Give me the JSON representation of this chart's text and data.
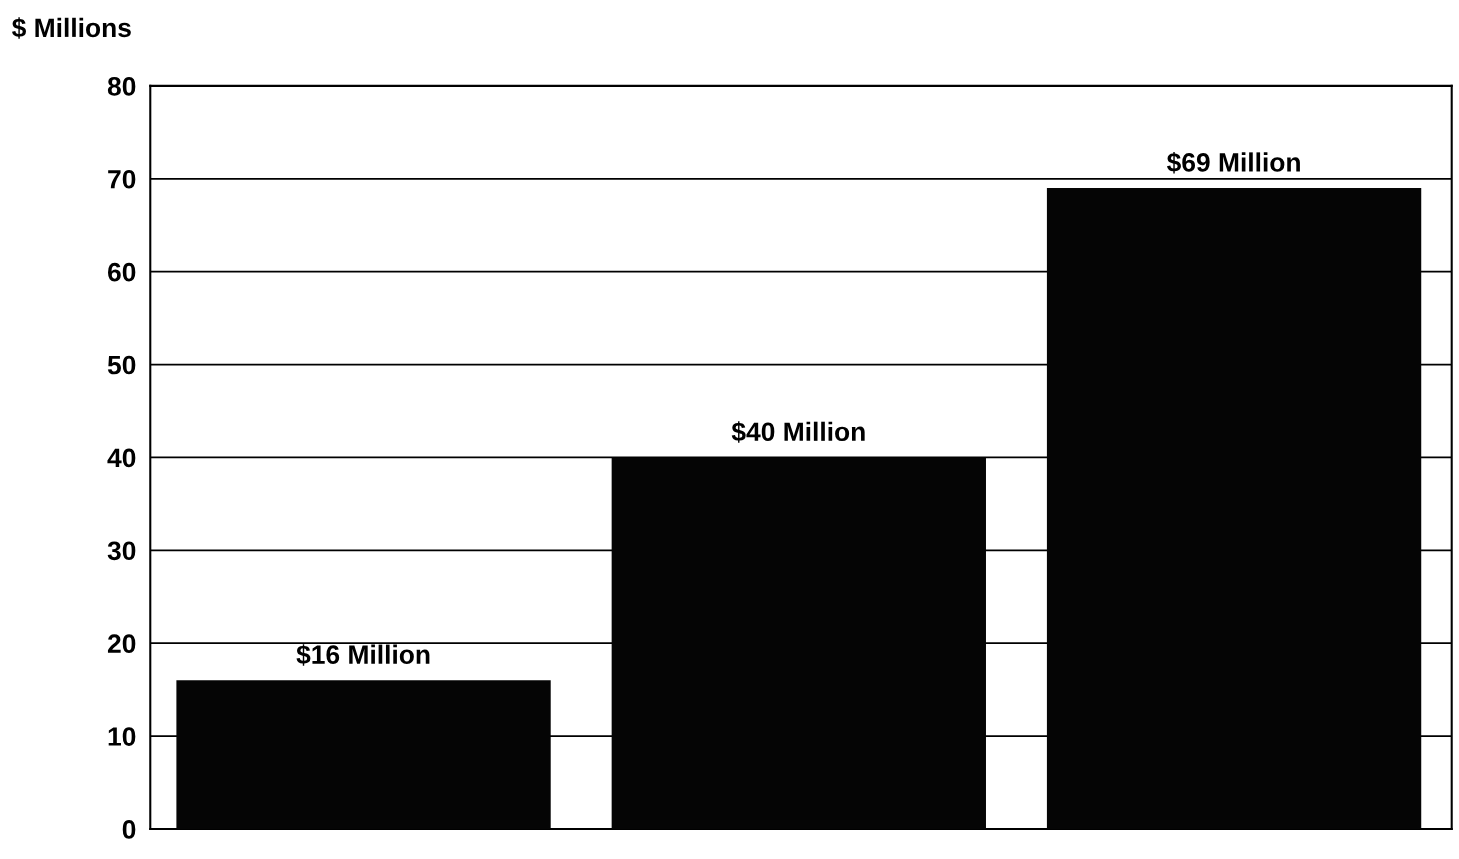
{
  "chart_data": {
    "type": "bar",
    "ylabel": "$ Millions",
    "categories": [
      null,
      null,
      null
    ],
    "values": [
      16,
      40,
      69
    ],
    "value_labels": [
      "$16 Million",
      "$40 Million",
      "$69 Million"
    ],
    "color": "#050505",
    "ylim": [
      0,
      80
    ],
    "yticks": [
      0,
      10,
      20,
      30,
      40,
      50,
      60,
      70,
      80
    ],
    "grid": "y",
    "legend": false
  }
}
